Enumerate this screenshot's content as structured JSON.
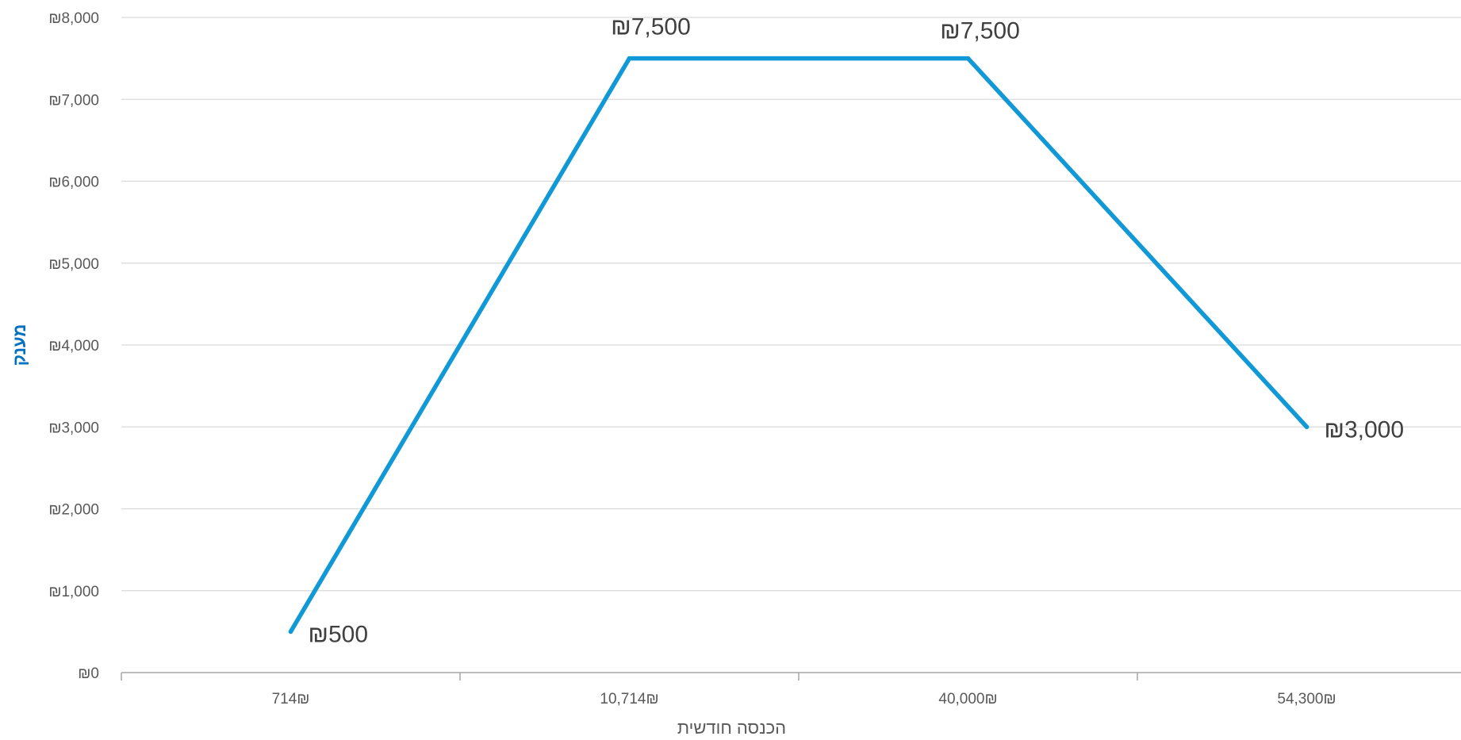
{
  "chart_data": {
    "type": "line",
    "title": "",
    "xlabel": "הכנסה חודשית",
    "ylabel": "מענק",
    "categories": [
      "714₪",
      "10,714₪",
      "40,000₪",
      "54,300₪"
    ],
    "series": [
      {
        "values": [
          500,
          7500,
          7500,
          3000
        ],
        "data_labels": [
          "₪500",
          "₪7,500",
          "₪7,500",
          "₪3,000"
        ]
      }
    ],
    "ylim": [
      0,
      8000
    ],
    "y_ticks": [
      0,
      1000,
      2000,
      3000,
      4000,
      5000,
      6000,
      7000,
      8000
    ],
    "y_tick_labels": [
      "₪0",
      "₪1,000",
      "₪2,000",
      "₪3,000",
      "₪4,000",
      "₪5,000",
      "₪6,000",
      "₪7,000",
      "₪8,000"
    ],
    "grid": true,
    "legend": "none",
    "colors": {
      "line": "#1099D6",
      "grid": "#D9D9D9",
      "axis": "#A6A6A6",
      "tick_text": "#595959",
      "label_text": "#404040",
      "ylabel_text": "#0070C0"
    }
  }
}
